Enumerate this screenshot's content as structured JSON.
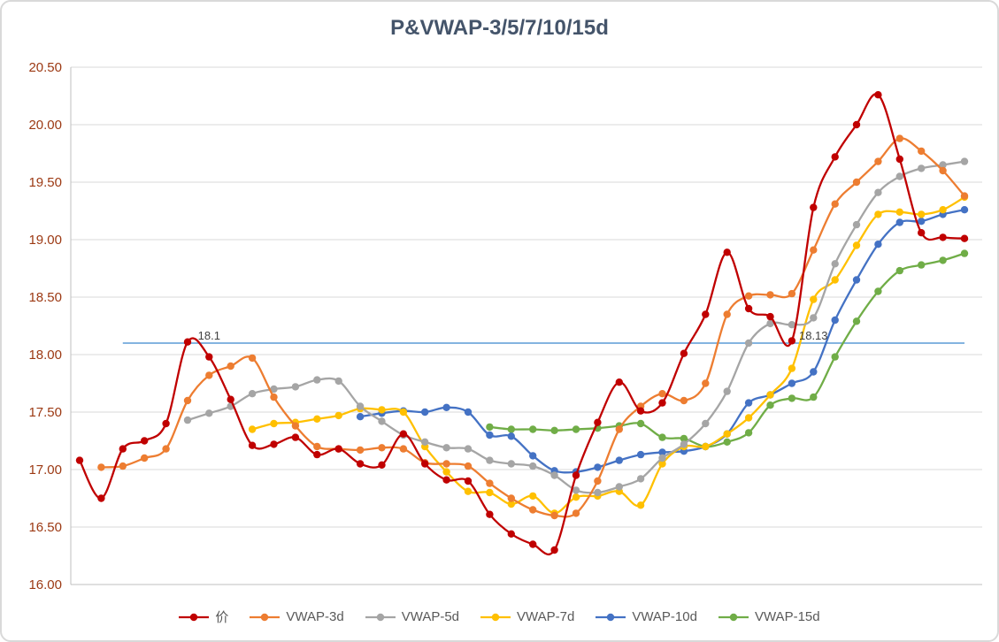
{
  "chart": {
    "title": "P&VWAP-3/5/7/10/15d"
  },
  "chart_data": {
    "type": "line",
    "title": "P&VWAP-3/5/7/10/15d",
    "xlabel": "",
    "ylabel": "",
    "x_count": 42,
    "ylim": [
      16.0,
      20.5
    ],
    "y_ticks": [
      "16.00",
      "16.50",
      "17.00",
      "17.50",
      "18.00",
      "18.50",
      "19.00",
      "19.50",
      "20.00",
      "20.50"
    ],
    "grid": "horizontal",
    "smoothed_lines": true,
    "legend_position": "bottom",
    "colors": {
      "title": "#44546A",
      "y_tick_label": "#9C3913",
      "legend_text": "#595959",
      "grid": "#D9D9D9",
      "axis": "#BFBFBF",
      "background": "#FFFFFF",
      "frame_border": "#D9D9D9"
    },
    "series": [
      {
        "id": "price",
        "name": "价",
        "color": "#C00000",
        "values": [
          17.08,
          16.75,
          17.18,
          17.25,
          17.4,
          18.11,
          17.98,
          17.61,
          17.21,
          17.22,
          17.28,
          17.13,
          17.18,
          17.05,
          17.04,
          17.31,
          17.05,
          16.91,
          16.9,
          16.61,
          16.44,
          16.35,
          16.3,
          16.95,
          17.41,
          17.76,
          17.51,
          17.58,
          18.01,
          18.35,
          18.89,
          18.4,
          18.33,
          18.12,
          19.28,
          19.72,
          20.0,
          20.26,
          19.7,
          19.06,
          19.02,
          19.01
        ]
      },
      {
        "id": "vwap-3d",
        "name": "VWAP-3d",
        "color": "#ED7D31",
        "values": [
          null,
          17.02,
          17.03,
          17.1,
          17.18,
          17.6,
          17.82,
          17.9,
          17.97,
          17.63,
          17.38,
          17.2,
          17.18,
          17.17,
          17.19,
          17.18,
          17.06,
          17.05,
          17.03,
          16.88,
          16.75,
          16.65,
          16.6,
          16.62,
          16.9,
          17.35,
          17.55,
          17.66,
          17.6,
          17.75,
          18.35,
          18.51,
          18.52,
          18.53,
          18.91,
          19.31,
          19.5,
          19.68,
          19.88,
          19.77,
          19.6,
          19.38
        ]
      },
      {
        "id": "vwap-5d",
        "name": "VWAP-5d",
        "color": "#A5A5A5",
        "values": [
          null,
          null,
          null,
          null,
          null,
          17.43,
          17.49,
          17.55,
          17.66,
          17.7,
          17.72,
          17.78,
          17.77,
          17.55,
          17.42,
          17.3,
          17.24,
          17.19,
          17.18,
          17.08,
          17.05,
          17.03,
          16.95,
          16.82,
          16.8,
          16.85,
          16.92,
          17.1,
          17.22,
          17.4,
          17.68,
          18.1,
          18.27,
          18.26,
          18.32,
          18.79,
          19.13,
          19.41,
          19.55,
          19.62,
          19.65,
          19.68
        ]
      },
      {
        "id": "vwap-7d",
        "name": "VWAP-7d",
        "color": "#FFC000",
        "values": [
          null,
          null,
          null,
          null,
          null,
          null,
          null,
          null,
          17.35,
          17.4,
          17.41,
          17.44,
          17.47,
          17.53,
          17.52,
          17.5,
          17.2,
          16.98,
          16.81,
          16.8,
          16.7,
          16.77,
          16.62,
          16.76,
          16.77,
          16.81,
          16.69,
          17.05,
          17.2,
          17.2,
          17.31,
          17.45,
          17.65,
          17.88,
          18.48,
          18.65,
          18.95,
          19.22,
          19.24,
          19.22,
          19.26,
          19.37
        ]
      },
      {
        "id": "vwap-10d",
        "name": "VWAP-10d",
        "color": "#4472C4",
        "values": [
          null,
          null,
          null,
          null,
          null,
          null,
          null,
          null,
          null,
          null,
          null,
          null,
          null,
          17.46,
          17.49,
          17.51,
          17.5,
          17.54,
          17.5,
          17.3,
          17.29,
          17.12,
          16.99,
          16.98,
          17.02,
          17.08,
          17.13,
          17.15,
          17.16,
          17.2,
          17.31,
          17.58,
          17.65,
          17.75,
          17.85,
          18.3,
          18.65,
          18.96,
          19.15,
          19.16,
          19.22,
          19.26
        ]
      },
      {
        "id": "vwap-15d",
        "name": "VWAP-15d",
        "color": "#70AD47",
        "values": [
          null,
          null,
          null,
          null,
          null,
          null,
          null,
          null,
          null,
          null,
          null,
          null,
          null,
          null,
          null,
          null,
          null,
          null,
          null,
          17.37,
          17.35,
          17.35,
          17.34,
          17.35,
          17.36,
          17.38,
          17.4,
          17.28,
          17.27,
          17.2,
          17.24,
          17.32,
          17.56,
          17.62,
          17.63,
          17.98,
          18.29,
          18.55,
          18.73,
          18.78,
          18.82,
          18.88
        ]
      }
    ],
    "reference_line": {
      "value": 18.1,
      "color": "#5B9BD5",
      "start_index": 2,
      "end_index": 41,
      "label_left": "18.1",
      "label_left_index": 6,
      "label_right": "18.13",
      "label_right_index": 34
    }
  }
}
